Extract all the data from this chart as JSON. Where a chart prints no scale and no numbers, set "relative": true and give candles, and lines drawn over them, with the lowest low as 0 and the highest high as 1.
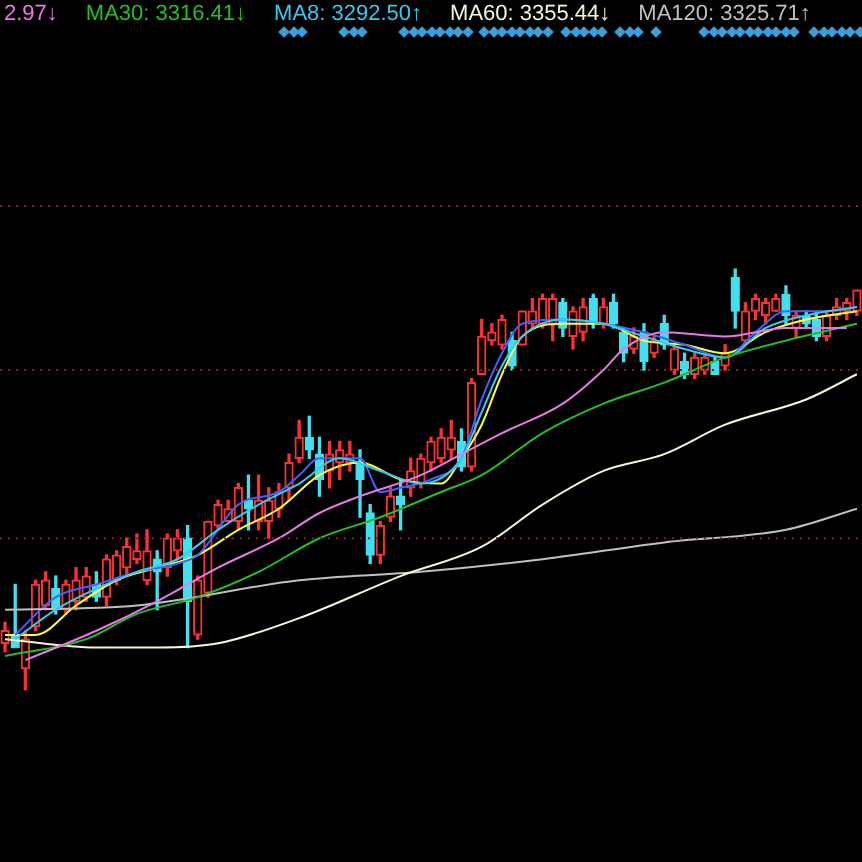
{
  "chart_data": {
    "type": "candlestick",
    "relative": true,
    "legend": "top left",
    "categories": [
      null,
      null,
      null,
      null,
      null,
      null,
      null,
      null,
      null,
      null,
      null,
      null,
      null,
      null,
      null,
      null,
      null,
      null,
      null,
      null,
      null,
      null,
      null,
      null,
      null,
      null,
      null,
      null,
      null,
      null,
      null,
      null,
      null,
      null,
      null,
      null,
      null,
      null,
      null,
      null,
      null,
      null,
      null,
      null,
      null,
      null,
      null,
      null,
      null,
      null,
      null,
      null,
      null,
      null,
      null,
      null,
      null,
      null,
      null,
      null,
      null,
      null,
      null,
      null,
      null,
      null,
      null,
      null,
      null,
      null,
      null,
      null,
      null,
      null,
      null,
      null,
      null,
      null,
      null,
      null,
      null,
      null,
      null,
      null,
      null
    ],
    "ohlc": [
      [
        0.11,
        0.16,
        0.09,
        0.14
      ],
      [
        0.13,
        0.25,
        0.1,
        0.1
      ],
      [
        0.05,
        0.14,
        0,
        0.12
      ],
      [
        0.15,
        0.26,
        0.14,
        0.25
      ],
      [
        0.2,
        0.28,
        0.19,
        0.26
      ],
      [
        0.24,
        0.27,
        0.18,
        0.19
      ],
      [
        0.19,
        0.26,
        0.18,
        0.25
      ],
      [
        0.21,
        0.29,
        0.19,
        0.26
      ],
      [
        0.22,
        0.29,
        0.21,
        0.27
      ],
      [
        0.25,
        0.28,
        0.21,
        0.22
      ],
      [
        0.22,
        0.32,
        0.2,
        0.31
      ],
      [
        0.26,
        0.33,
        0.25,
        0.32
      ],
      [
        0.29,
        0.36,
        0.27,
        0.34
      ],
      [
        0.31,
        0.37,
        0.3,
        0.33
      ],
      [
        0.26,
        0.38,
        0.25,
        0.33
      ],
      [
        0.31,
        0.33,
        0.19,
        0.28
      ],
      [
        0.29,
        0.37,
        0.27,
        0.36
      ],
      [
        0.33,
        0.38,
        0.31,
        0.36
      ],
      [
        0.36,
        0.39,
        0.1,
        0.21
      ],
      [
        0.13,
        0.27,
        0.12,
        0.26
      ],
      [
        0.23,
        0.4,
        0.22,
        0.4
      ],
      [
        0.39,
        0.45,
        0.38,
        0.44
      ],
      [
        0.4,
        0.45,
        0.4,
        0.43
      ],
      [
        0.4,
        0.49,
        0.38,
        0.48
      ],
      [
        0.45,
        0.51,
        0.38,
        0.43
      ],
      [
        0.4,
        0.51,
        0.38,
        0.45
      ],
      [
        0.4,
        0.48,
        0.36,
        0.45
      ],
      [
        0.43,
        0.49,
        0.41,
        0.47
      ],
      [
        0.48,
        0.56,
        0.45,
        0.54
      ],
      [
        0.55,
        0.64,
        0.54,
        0.6
      ],
      [
        0.6,
        0.65,
        0.55,
        0.57
      ],
      [
        0.56,
        0.6,
        0.46,
        0.5
      ],
      [
        0.52,
        0.59,
        0.48,
        0.56
      ],
      [
        0.54,
        0.59,
        0.5,
        0.57
      ],
      [
        0.54,
        0.59,
        0.52,
        0.56
      ],
      [
        0.54,
        0.57,
        0.41,
        0.5
      ],
      [
        0.42,
        0.44,
        0.3,
        0.32
      ],
      [
        0.32,
        0.4,
        0.3,
        0.39
      ],
      [
        0.41,
        0.48,
        0.4,
        0.46
      ],
      [
        0.46,
        0.5,
        0.38,
        0.44
      ],
      [
        0.48,
        0.55,
        0.46,
        0.52
      ],
      [
        0.49,
        0.56,
        0.48,
        0.55
      ],
      [
        0.54,
        0.6,
        0.52,
        0.59
      ],
      [
        0.55,
        0.62,
        0.54,
        0.6
      ],
      [
        0.57,
        0.64,
        0.55,
        0.6
      ],
      [
        0.59,
        0.62,
        0.52,
        0.53
      ],
      [
        0.53,
        0.74,
        0.52,
        0.73
      ],
      [
        0.75,
        0.88,
        0.75,
        0.84
      ],
      [
        0.83,
        0.87,
        0.82,
        0.85
      ],
      [
        0.82,
        0.89,
        0.81,
        0.88
      ],
      [
        0.83,
        0.85,
        0.76,
        0.77
      ],
      [
        0.82,
        0.9,
        0.82,
        0.9
      ],
      [
        0.87,
        0.93,
        0.86,
        0.9
      ],
      [
        0.87,
        0.94,
        0.86,
        0.93
      ],
      [
        0.87,
        0.94,
        0.83,
        0.93
      ],
      [
        0.92,
        0.93,
        0.84,
        0.86
      ],
      [
        0.84,
        0.91,
        0.81,
        0.9
      ],
      [
        0.85,
        0.93,
        0.83,
        0.91
      ],
      [
        0.93,
        0.94,
        0.86,
        0.87
      ],
      [
        0.87,
        0.93,
        0.86,
        0.91
      ],
      [
        0.92,
        0.94,
        0.86,
        0.87
      ],
      [
        0.85,
        0.86,
        0.78,
        0.8
      ],
      [
        0.81,
        0.86,
        0.8,
        0.84
      ],
      [
        0.85,
        0.87,
        0.76,
        0.78
      ],
      [
        0.8,
        0.84,
        0.79,
        0.83
      ],
      [
        0.87,
        0.89,
        0.81,
        0.82
      ],
      [
        0.76,
        0.82,
        0.75,
        0.81
      ],
      [
        0.78,
        0.8,
        0.74,
        0.75
      ],
      [
        0.75,
        0.8,
        0.74,
        0.79
      ],
      [
        0.76,
        0.8,
        0.75,
        0.79
      ],
      [
        0.78,
        0.79,
        0.75,
        0.75
      ],
      [
        0.77,
        0.82,
        0.76,
        0.8
      ],
      [
        0.98,
        1,
        0.86,
        0.9
      ],
      [
        0.83,
        0.92,
        0.82,
        0.9
      ],
      [
        0.9,
        0.94,
        0.88,
        0.93
      ],
      [
        0.89,
        0.93,
        0.87,
        0.92
      ],
      [
        0.9,
        0.94,
        0.9,
        0.93
      ],
      [
        0.94,
        0.96,
        0.87,
        0.89
      ],
      [
        0.86,
        0.9,
        0.84,
        0.89
      ],
      [
        0.89,
        0.9,
        0.86,
        0.87
      ],
      [
        0.88,
        0.9,
        0.83,
        0.84
      ],
      [
        0.84,
        0.9,
        0.83,
        0.89
      ],
      [
        0.89,
        0.93,
        0.88,
        0.91
      ],
      [
        0.9,
        0.93,
        0.88,
        0.92
      ],
      [
        0.9,
        0.95,
        0.89,
        0.95
      ]
    ],
    "series": [
      {
        "type": "line",
        "name": "2.97↓",
        "color": "#e878e8",
        "values": [
          null,
          null,
          0.07,
          null,
          null,
          null,
          null,
          null,
          null,
          0.14,
          null,
          null,
          null,
          null,
          null,
          0.21,
          null,
          null,
          null,
          null,
          null,
          0.29,
          null,
          null,
          null,
          null,
          null,
          0.36,
          null,
          null,
          null,
          0.42,
          null,
          null,
          null,
          0.46,
          null,
          null,
          null,
          null,
          null,
          0.51,
          null,
          null,
          null,
          0.56,
          null,
          null,
          null,
          0.61,
          null,
          null,
          null,
          null,
          null,
          0.68,
          null,
          null,
          null,
          0.76,
          null,
          0.81,
          null,
          null,
          null,
          0.85,
          null,
          null,
          null,
          null,
          null,
          0.84,
          null,
          null,
          null,
          null,
          null,
          0.86,
          null,
          null,
          null,
          null,
          null,
          0.86,
          null
        ]
      },
      {
        "type": "line",
        "name": "MA30: 3316.41↓",
        "color": "#22c022",
        "values": [
          0.08,
          null,
          null,
          null,
          null,
          null,
          null,
          null,
          0.12,
          null,
          null,
          null,
          null,
          0.18,
          null,
          null,
          null,
          null,
          null,
          0.22,
          null,
          null,
          null,
          null,
          null,
          0.28,
          null,
          null,
          null,
          null,
          null,
          0.36,
          null,
          null,
          null,
          null,
          null,
          0.41,
          null,
          null,
          null,
          null,
          null,
          0.47,
          null,
          null,
          null,
          0.51,
          null,
          null,
          null,
          null,
          null,
          0.61,
          null,
          null,
          null,
          null,
          null,
          0.68,
          null,
          null,
          null,
          null,
          null,
          0.73,
          null,
          null,
          null,
          null,
          null,
          0.79,
          null,
          null,
          null,
          null,
          null,
          0.83,
          null,
          null,
          null,
          null,
          null,
          null,
          0.87
        ]
      },
      {
        "type": "line",
        "name": "MA8: 3292.50↑",
        "color": "#33ccee",
        "values": [
          null,
          0.12,
          null,
          null,
          null,
          0.19,
          null,
          null,
          null,
          0.24,
          null,
          null,
          null,
          0.28,
          null,
          null,
          null,
          0.31,
          null,
          null,
          null,
          0.38,
          null,
          null,
          null,
          0.44,
          null,
          null,
          null,
          0.49,
          null,
          null,
          null,
          0.55,
          null,
          null,
          null,
          0.52,
          null,
          null,
          null,
          0.49,
          null,
          null,
          null,
          0.55,
          null,
          0.66,
          null,
          0.77,
          null,
          0.84,
          null,
          null,
          null,
          0.88,
          null,
          null,
          null,
          0.87,
          null,
          null,
          null,
          0.84,
          null,
          null,
          null,
          0.81,
          null,
          null,
          null,
          0.79,
          null,
          null,
          null,
          0.86,
          null,
          null,
          null,
          0.89,
          null,
          null,
          null,
          null,
          0.91
        ]
      },
      {
        "type": "line",
        "name": "MA60: 3355.44↓",
        "color": "#f5f5dc",
        "values": [
          0.12,
          null,
          null,
          null,
          null,
          null,
          null,
          null,
          null,
          0.1,
          null,
          null,
          null,
          null,
          null,
          0.1,
          null,
          null,
          null,
          null,
          null,
          0.11,
          null,
          null,
          null,
          null,
          null,
          null,
          null,
          0.17,
          null,
          null,
          null,
          null,
          null,
          null,
          null,
          null,
          null,
          0.27,
          null,
          null,
          null,
          null,
          null,
          null,
          null,
          0.34,
          null,
          null,
          null,
          null,
          null,
          0.44,
          null,
          null,
          null,
          null,
          null,
          0.52,
          null,
          null,
          null,
          null,
          null,
          0.56,
          null,
          null,
          null,
          null,
          null,
          0.63,
          null,
          null,
          null,
          null,
          null,
          null,
          null,
          0.69,
          null,
          null,
          null,
          null,
          0.75
        ]
      },
      {
        "type": "line",
        "name": "MA120: 3325.71↑",
        "color": "#c0c0c0",
        "values": [
          0.19,
          null,
          null,
          null,
          null,
          null,
          null,
          null,
          null,
          null,
          null,
          null,
          null,
          0.2,
          null,
          null,
          null,
          null,
          null,
          null,
          null,
          null,
          null,
          null,
          null,
          null,
          null,
          null,
          null,
          0.26,
          null,
          null,
          null,
          null,
          null,
          null,
          null,
          null,
          null,
          null,
          null,
          0.28,
          null,
          null,
          null,
          null,
          null,
          null,
          null,
          null,
          null,
          null,
          null,
          0.31,
          null,
          null,
          null,
          null,
          null,
          null,
          null,
          null,
          null,
          null,
          null,
          0.35,
          null,
          null,
          null,
          null,
          null,
          null,
          null,
          null,
          null,
          null,
          null,
          0.38,
          null,
          null,
          null,
          null,
          null,
          null,
          0.43
        ]
      },
      {
        "type": "line",
        "color": "#4060ff",
        "values": [
          null,
          0.13,
          null,
          null,
          null,
          0.22,
          null,
          null,
          null,
          0.25,
          null,
          null,
          null,
          0.28,
          null,
          null,
          null,
          0.3,
          null,
          0.32,
          null,
          null,
          null,
          0.44,
          null,
          null,
          null,
          0.47,
          null,
          0.51,
          null,
          0.55,
          null,
          null,
          null,
          0.55,
          null,
          0.47,
          null,
          0.48,
          null,
          null,
          0.5,
          null,
          null,
          0.55,
          null,
          0.69,
          null,
          0.8,
          null,
          0.87,
          null,
          null,
          null,
          0.88,
          null,
          null,
          null,
          0.87,
          null,
          null,
          null,
          0.85,
          null,
          null,
          null,
          0.82,
          null,
          null,
          null,
          0.79,
          null,
          null,
          0.85,
          null,
          null,
          0.9,
          null,
          null,
          null,
          0.9,
          null,
          null,
          0.91
        ]
      },
      {
        "type": "line",
        "color": "#ffff40",
        "values": [
          0.13,
          null,
          null,
          0.13,
          null,
          null,
          null,
          0.2,
          null,
          null,
          null,
          0.26,
          null,
          null,
          null,
          0.29,
          null,
          null,
          null,
          0.32,
          null,
          null,
          null,
          0.38,
          null,
          null,
          null,
          0.43,
          null,
          null,
          null,
          0.51,
          null,
          null,
          null,
          0.54,
          null,
          null,
          null,
          0.5,
          null,
          null,
          null,
          0.49,
          null,
          0.55,
          null,
          0.63,
          null,
          0.75,
          null,
          0.84,
          null,
          null,
          null,
          0.87,
          null,
          null,
          null,
          0.87,
          null,
          null,
          null,
          0.83,
          null,
          null,
          null,
          0.82,
          null,
          null,
          null,
          0.8,
          null,
          null,
          null,
          0.85,
          null,
          null,
          null,
          0.88,
          null,
          null,
          null,
          null,
          0.9
        ]
      }
    ],
    "ref_lines": [
      {
        "axis": "y",
        "value": 1.15,
        "color": "#8b1a1a",
        "line_style": "dotted"
      },
      {
        "axis": "y",
        "value": 0.76,
        "color": "#8b1a1a",
        "line_style": "dotted"
      },
      {
        "axis": "y",
        "value": 0.36,
        "color": "#8b1a1a",
        "line_style": "dotted"
      }
    ],
    "marker": "none",
    "line_style": "solid"
  }
}
